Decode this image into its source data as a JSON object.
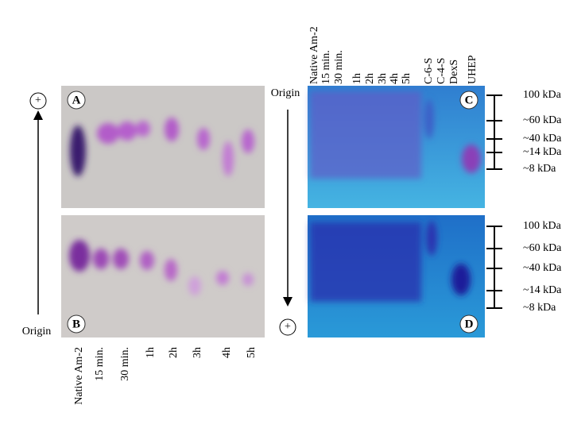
{
  "left": {
    "panels": [
      "A",
      "B"
    ],
    "lanes": [
      "Native Am-2",
      "15 min.",
      "30 min.",
      "1h",
      "2h",
      "3h",
      "4h",
      "5h"
    ],
    "positive": "+",
    "origin": "Origin"
  },
  "right": {
    "panels": [
      "C",
      "D"
    ],
    "lanes": [
      "Native Am-2",
      "15 min.",
      "30 min.",
      "1h",
      "2h",
      "3h",
      "4h",
      "5h",
      "C-6-S",
      "C-4-S",
      "DexS",
      "UHEP"
    ],
    "origin": "Origin",
    "positive": "+",
    "markers_c": [
      "100 kDa",
      "~60 kDa",
      "~40 kDa",
      "~14 kDa",
      "~8 kDa"
    ],
    "markers_d": [
      "100 kDa",
      "~60 kDa",
      "~40 kDa",
      "~14 kDa",
      "~8 kDa"
    ]
  }
}
